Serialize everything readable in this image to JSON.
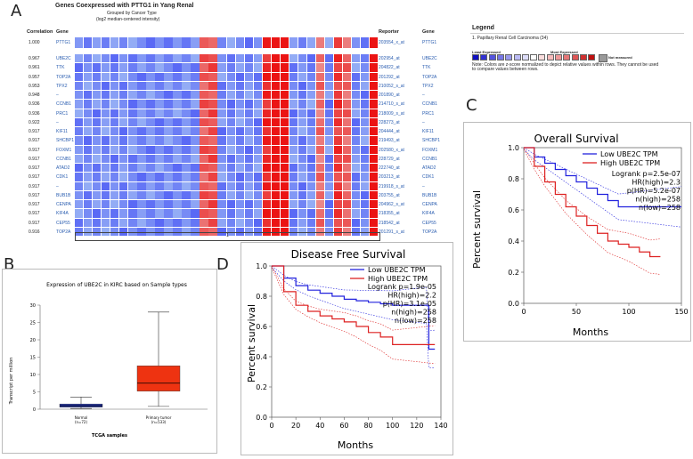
{
  "panels": {
    "a": "A",
    "b": "B",
    "c": "C",
    "d": "D"
  },
  "heatmap": {
    "title": "Genes Coexpressed with PTTG1 in Yang Renal",
    "subtitle1": "Grouped by Cancer Type",
    "subtitle2": "(log2 median-centered intensity)",
    "col_correlation": "Correlation",
    "col_gene": "Gene",
    "col_reporter": "Reporter",
    "col_gene2": "Gene",
    "footer_label": "1",
    "reference": {
      "corr": "1.000",
      "gene": "PTTG1",
      "reporter": "203554_x_at",
      "gene2": "PTTG1"
    },
    "rows": [
      {
        "corr": "0.967",
        "gene": "UBE2C",
        "reporter": "202954_at",
        "gene2": "UBE2C"
      },
      {
        "corr": "0.961",
        "gene": "TTK",
        "reporter": "204822_at",
        "gene2": "TTK"
      },
      {
        "corr": "0.957",
        "gene": "TOP2A",
        "reporter": "201292_at",
        "gene2": "TOP2A"
      },
      {
        "corr": "0.953",
        "gene": "TPX2",
        "reporter": "210052_s_at",
        "gene2": "TPX2"
      },
      {
        "corr": "0.948",
        "gene": "–",
        "reporter": "201890_at",
        "gene2": "–"
      },
      {
        "corr": "0.936",
        "gene": "CCNB1",
        "reporter": "214710_s_at",
        "gene2": "CCNB1"
      },
      {
        "corr": "0.936",
        "gene": "PRC1",
        "reporter": "218009_s_at",
        "gene2": "PRC1"
      },
      {
        "corr": "0.922",
        "gene": "–",
        "reporter": "228273_at",
        "gene2": "–"
      },
      {
        "corr": "0.917",
        "gene": "KIF11",
        "reporter": "204444_at",
        "gene2": "KIF11"
      },
      {
        "corr": "0.917",
        "gene": "SHCBP1",
        "reporter": "219493_at",
        "gene2": "SHCBP1"
      },
      {
        "corr": "0.917",
        "gene": "FOXM1",
        "reporter": "202580_x_at",
        "gene2": "FOXM1"
      },
      {
        "corr": "0.917",
        "gene": "CCNB1",
        "reporter": "228729_at",
        "gene2": "CCNB1"
      },
      {
        "corr": "0.917",
        "gene": "ATAD2",
        "reporter": "222740_at",
        "gene2": "ATAD2"
      },
      {
        "corr": "0.917",
        "gene": "CDK1",
        "reporter": "203213_at",
        "gene2": "CDK1"
      },
      {
        "corr": "0.917",
        "gene": "–",
        "reporter": "219918_s_at",
        "gene2": "–"
      },
      {
        "corr": "0.917",
        "gene": "BUB1B",
        "reporter": "203755_at",
        "gene2": "BUB1B"
      },
      {
        "corr": "0.917",
        "gene": "CENPA",
        "reporter": "204962_s_at",
        "gene2": "CENPA"
      },
      {
        "corr": "0.917",
        "gene": "KIF4A",
        "reporter": "218355_at",
        "gene2": "KIF4A"
      },
      {
        "corr": "0.917",
        "gene": "CEP55",
        "reporter": "218542_at",
        "gene2": "CEP55"
      },
      {
        "corr": "0.916",
        "gene": "TOP2A",
        "reporter": "201291_s_at",
        "gene2": "TOP2A"
      }
    ]
  },
  "legend": {
    "title": "Legend",
    "item": "1. Papillary Renal Cell Carcinoma (34)",
    "least": "Least Expressed",
    "most": "Most Expressed",
    "not_measured": "Not measured",
    "note": "Note: Colors are z-score normalized to depict relative values within rows. They cannot be used to compare values between rows."
  },
  "colors": {
    "low": "#2222dd",
    "high": "#dd2222",
    "box": "#ee3311",
    "normal_box": "#2233aa"
  },
  "chart_data": [
    {
      "id": "boxplot",
      "type": "box",
      "title": "Expression of UBE2C in KIRC based on Sample types",
      "ylabel": "Transcript per million",
      "xlabel": "TCGA samples",
      "ylim": [
        0,
        30
      ],
      "yticks": [
        "0",
        "5",
        "10",
        "15",
        "20",
        "25",
        "30"
      ],
      "groups": [
        {
          "name": "Normal",
          "n": "(n=72)",
          "min": 0.2,
          "q1": 0.6,
          "median": 1.0,
          "q3": 1.5,
          "max": 3.5
        },
        {
          "name": "Primary tumor",
          "n": "(n=533)",
          "min": 0.8,
          "q1": 5.2,
          "median": 7.5,
          "q3": 12.5,
          "max": 28
        }
      ]
    },
    {
      "id": "os",
      "type": "line",
      "title": "Overall Survival",
      "xlabel": "Months",
      "ylabel": "Percent survival",
      "xlim": [
        0,
        150
      ],
      "ylim": [
        0,
        1
      ],
      "xticks": [
        "0",
        "50",
        "100",
        "150"
      ],
      "yticks": [
        "0.0",
        "0.2",
        "0.4",
        "0.6",
        "0.8",
        "1.0"
      ],
      "legend": [
        "Low UBE2C TPM",
        "High UBE2C TPM"
      ],
      "stats": [
        "Logrank p=2.5e-07",
        "HR(high)=2.3",
        "p(HR)=5.2e-07",
        "n(high)=258",
        "n(low)=258"
      ],
      "series": [
        {
          "name": "Low UBE2C TPM",
          "x": [
            0,
            10,
            20,
            30,
            40,
            50,
            60,
            70,
            80,
            90,
            100,
            110,
            120,
            130,
            140,
            150
          ],
          "y": [
            1.0,
            0.94,
            0.9,
            0.86,
            0.82,
            0.78,
            0.74,
            0.7,
            0.66,
            0.62,
            0.62,
            0.62,
            0.62,
            0.62,
            0.62,
            0.62
          ]
        },
        {
          "name": "High UBE2C TPM",
          "x": [
            0,
            10,
            20,
            30,
            40,
            50,
            60,
            70,
            80,
            90,
            100,
            110,
            120,
            130
          ],
          "y": [
            1.0,
            0.88,
            0.78,
            0.7,
            0.62,
            0.56,
            0.5,
            0.45,
            0.4,
            0.38,
            0.36,
            0.33,
            0.3,
            0.3
          ]
        }
      ]
    },
    {
      "id": "dfs",
      "type": "line",
      "title": "Disease Free Survival",
      "xlabel": "Months",
      "ylabel": "Percent survival",
      "xlim": [
        0,
        140
      ],
      "ylim": [
        0,
        1
      ],
      "xticks": [
        "0",
        "20",
        "40",
        "60",
        "80",
        "100",
        "120",
        "140"
      ],
      "yticks": [
        "0.0",
        "0.2",
        "0.4",
        "0.6",
        "0.8",
        "1.0"
      ],
      "legend": [
        "Low UBE2C TPM",
        "High UBE2C TPM"
      ],
      "stats": [
        "Logrank p=1.9e-05",
        "HR(high)=2.2",
        "p(HR)=3.1e-05",
        "n(high)=258",
        "n(low)=258"
      ],
      "series": [
        {
          "name": "Low UBE2C TPM",
          "x": [
            0,
            10,
            20,
            30,
            40,
            50,
            60,
            70,
            80,
            90,
            100,
            110,
            120,
            128,
            130,
            135
          ],
          "y": [
            1.0,
            0.92,
            0.87,
            0.84,
            0.82,
            0.8,
            0.78,
            0.77,
            0.76,
            0.75,
            0.74,
            0.74,
            0.74,
            0.74,
            0.45,
            0.45
          ]
        },
        {
          "name": "High UBE2C TPM",
          "x": [
            0,
            10,
            20,
            30,
            40,
            50,
            60,
            70,
            80,
            90,
            100,
            110,
            120,
            130,
            135
          ],
          "y": [
            1.0,
            0.83,
            0.74,
            0.7,
            0.67,
            0.65,
            0.63,
            0.6,
            0.56,
            0.53,
            0.48,
            0.48,
            0.48,
            0.48,
            0.48
          ]
        }
      ]
    }
  ]
}
